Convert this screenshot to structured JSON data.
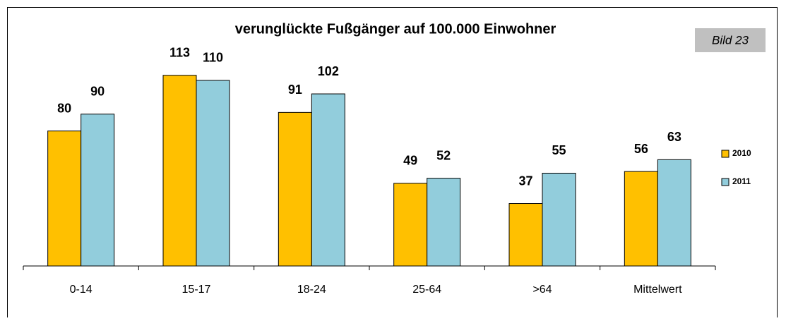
{
  "chart_data": {
    "type": "bar",
    "title": "verunglückte Fußgänger auf 100.000 Einwohner",
    "annotation": "Bild 23",
    "categories": [
      "0-14",
      "15-17",
      "18-24",
      "25-64",
      ">64",
      "Mittelwert"
    ],
    "series": [
      {
        "name": "2010",
        "color": "#ffc000",
        "values": [
          80,
          113,
          91,
          49,
          37,
          56
        ]
      },
      {
        "name": "2011",
        "color": "#92cddc",
        "values": [
          90,
          110,
          102,
          52,
          55,
          63
        ]
      }
    ],
    "ylim": [
      0,
      120
    ],
    "legend": "right"
  }
}
